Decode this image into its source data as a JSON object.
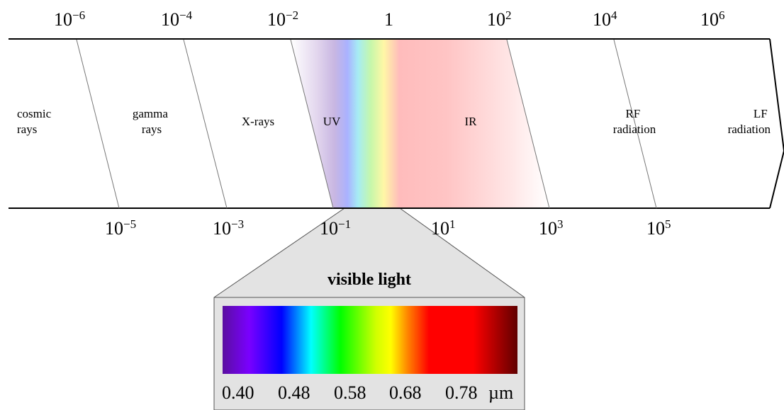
{
  "top_scale": [
    {
      "base": "10",
      "exp": "−6"
    },
    {
      "base": "10",
      "exp": "−4"
    },
    {
      "base": "10",
      "exp": "−2"
    },
    {
      "base": "1",
      "exp": ""
    },
    {
      "base": "10",
      "exp": "2"
    },
    {
      "base": "10",
      "exp": "4"
    },
    {
      "base": "10",
      "exp": "6"
    }
  ],
  "bottom_scale": [
    {
      "base": "10",
      "exp": "−5"
    },
    {
      "base": "10",
      "exp": "−3"
    },
    {
      "base": "10",
      "exp": "−1"
    },
    {
      "base": "10",
      "exp": "1"
    },
    {
      "base": "10",
      "exp": "3"
    },
    {
      "base": "10",
      "exp": "5"
    }
  ],
  "bands": [
    {
      "name": "cosmic-rays",
      "lines": [
        "cosmic",
        "rays"
      ]
    },
    {
      "name": "gamma-rays",
      "lines": [
        "gamma",
        "rays"
      ]
    },
    {
      "name": "x-rays",
      "lines": [
        "X-rays"
      ]
    },
    {
      "name": "uv",
      "lines": [
        "UV"
      ]
    },
    {
      "name": "ir",
      "lines": [
        "IR"
      ]
    },
    {
      "name": "rf-radiation",
      "lines": [
        "RF",
        "radiation"
      ]
    },
    {
      "name": "lf-radiation",
      "lines": [
        "LF",
        "radiation"
      ]
    }
  ],
  "inset": {
    "title": "visible light",
    "ticks": [
      "0.40",
      "0.48",
      "0.58",
      "0.68",
      "0.78"
    ],
    "unit": "µm"
  },
  "colors": {
    "inset_background": "#e3e3e3",
    "spectrum": [
      "#5a0fa0",
      "#7a00ff",
      "#0000ff",
      "#00ffff",
      "#00ff00",
      "#ffff00",
      "#ff8000",
      "#ff0000",
      "#600000"
    ]
  }
}
